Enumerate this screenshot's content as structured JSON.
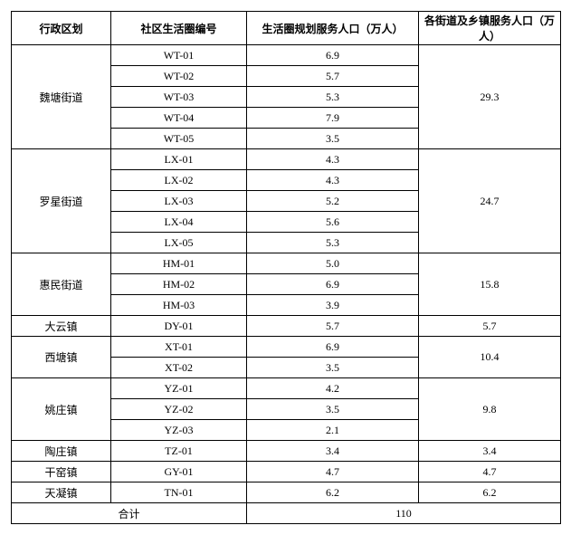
{
  "columns": [
    "行政区划",
    "社区生活圈编号",
    "生活圈规划服务人口（万人）",
    "各街道及乡镇服务人口（万人）"
  ],
  "groups": [
    {
      "district": "魏塘街道",
      "rows": [
        {
          "code": "WT-01",
          "pop": "6.9"
        },
        {
          "code": "WT-02",
          "pop": "5.7"
        },
        {
          "code": "WT-03",
          "pop": "5.3"
        },
        {
          "code": "WT-04",
          "pop": "7.9"
        },
        {
          "code": "WT-05",
          "pop": "3.5"
        }
      ],
      "subtotal": "29.3"
    },
    {
      "district": "罗星街道",
      "rows": [
        {
          "code": "LX-01",
          "pop": "4.3"
        },
        {
          "code": "LX-02",
          "pop": "4.3"
        },
        {
          "code": "LX-03",
          "pop": "5.2"
        },
        {
          "code": "LX-04",
          "pop": "5.6"
        },
        {
          "code": "LX-05",
          "pop": "5.3"
        }
      ],
      "subtotal": "24.7"
    },
    {
      "district": "惠民街道",
      "rows": [
        {
          "code": "HM-01",
          "pop": "5.0"
        },
        {
          "code": "HM-02",
          "pop": "6.9"
        },
        {
          "code": "HM-03",
          "pop": "3.9"
        }
      ],
      "subtotal": "15.8"
    },
    {
      "district": "大云镇",
      "rows": [
        {
          "code": "DY-01",
          "pop": "5.7"
        }
      ],
      "subtotal": "5.7"
    },
    {
      "district": "西塘镇",
      "rows": [
        {
          "code": "XT-01",
          "pop": "6.9"
        },
        {
          "code": "XT-02",
          "pop": "3.5"
        }
      ],
      "subtotal": "10.4"
    },
    {
      "district": "姚庄镇",
      "rows": [
        {
          "code": "YZ-01",
          "pop": "4.2"
        },
        {
          "code": "YZ-02",
          "pop": "3.5"
        },
        {
          "code": "YZ-03",
          "pop": "2.1"
        }
      ],
      "subtotal": "9.8"
    },
    {
      "district": "陶庄镇",
      "rows": [
        {
          "code": "TZ-01",
          "pop": "3.4"
        }
      ],
      "subtotal": "3.4"
    },
    {
      "district": "干窑镇",
      "rows": [
        {
          "code": "GY-01",
          "pop": "4.7"
        }
      ],
      "subtotal": "4.7"
    },
    {
      "district": "天凝镇",
      "rows": [
        {
          "code": "TN-01",
          "pop": "6.2"
        }
      ],
      "subtotal": "6.2"
    }
  ],
  "total_label": "合计",
  "total_value": "110"
}
